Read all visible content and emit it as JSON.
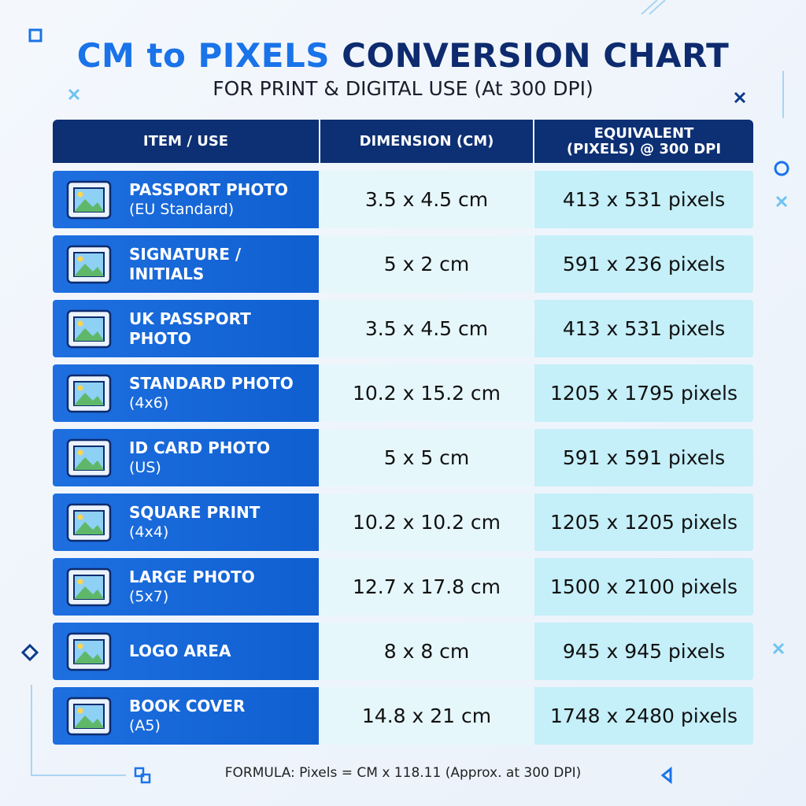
{
  "title": {
    "highlight": "CM to PIXELS",
    "rest": "CONVERSION CHART"
  },
  "subtitle": "FOR PRINT & DIGITAL USE (At 300 DPI)",
  "table": {
    "headers": [
      "ITEM / USE",
      "DIMENSION (CM)",
      "EQUIVALENT (PIXELS) @ 300 DPI"
    ],
    "rows": [
      {
        "name": "PASSPORT PHOTO",
        "sub": "(EU Standard)",
        "dimension": "3.5 x 4.5 cm",
        "pixels": "413 x 531 pixels"
      },
      {
        "name": "SIGNATURE / INITIALS",
        "dimension": "5 x 2 cm",
        "pixels": "591 x 236 pixels"
      },
      {
        "name": "UK PASSPORT PHOTO",
        "dimension": "3.5 x 4.5 cm",
        "pixels": "413 x 531 pixels"
      },
      {
        "name": "STANDARD PHOTO",
        "sub": "(4x6)",
        "dimension": "10.2 x 15.2 cm",
        "pixels": "1205 x 1795 pixels"
      },
      {
        "name": "ID CARD PHOTO",
        "sub": "(US)",
        "dimension": "5 x 5 cm",
        "pixels": "591 x 591 pixels"
      },
      {
        "name": "SQUARE PRINT",
        "sub": "(4x4)",
        "dimension": "10.2 x 10.2 cm",
        "pixels": "1205 x 1205 pixels"
      },
      {
        "name": "LARGE PHOTO",
        "sub": "(5x7)",
        "dimension": "12.7 x 17.8 cm",
        "pixels": "1500 x 2100 pixels"
      },
      {
        "name": "LOGO AREA",
        "dimension": "8 x 8 cm",
        "pixels": "945 x 945 pixels"
      },
      {
        "name": "BOOK COVER",
        "sub": "(A5)",
        "dimension": "14.8 x 21 cm",
        "pixels": "1748 x 2480 pixels"
      }
    ]
  },
  "formula": "FORMULA: Pixels = CM x 118.11 (Approx. at 300 DPI)"
}
